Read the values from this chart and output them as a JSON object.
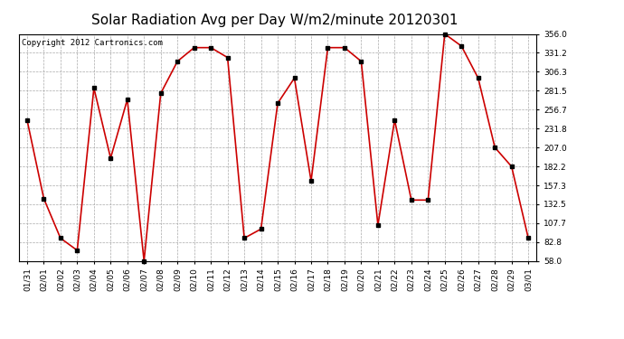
{
  "title": "Solar Radiation Avg per Day W/m2/minute 20120301",
  "copyright": "Copyright 2012 Cartronics.com",
  "dates": [
    "01/31",
    "02/01",
    "02/02",
    "02/03",
    "02/04",
    "02/05",
    "02/06",
    "02/07",
    "02/08",
    "02/09",
    "02/10",
    "02/11",
    "02/12",
    "02/13",
    "02/14",
    "02/15",
    "02/16",
    "02/17",
    "02/18",
    "02/19",
    "02/20",
    "02/21",
    "02/22",
    "02/23",
    "02/24",
    "02/25",
    "02/26",
    "02/27",
    "02/28",
    "02/29",
    "03/01"
  ],
  "values": [
    243,
    140,
    88,
    72,
    285,
    193,
    270,
    58,
    278,
    320,
    338,
    338,
    325,
    88,
    100,
    265,
    298,
    163,
    338,
    338,
    320,
    105,
    243,
    138,
    138,
    356,
    340,
    298,
    207,
    182,
    88
  ],
  "line_color": "#cc0000",
  "marker": "s",
  "marker_size": 3,
  "marker_color": "#000000",
  "line_width": 1.2,
  "background_color": "#ffffff",
  "grid_color": "#aaaaaa",
  "ylim": [
    58.0,
    356.0
  ],
  "yticks": [
    58.0,
    82.8,
    107.7,
    132.5,
    157.3,
    182.2,
    207.0,
    231.8,
    256.7,
    281.5,
    306.3,
    331.2,
    356.0
  ],
  "title_fontsize": 11,
  "copyright_fontsize": 6.5,
  "tick_fontsize": 6.5
}
